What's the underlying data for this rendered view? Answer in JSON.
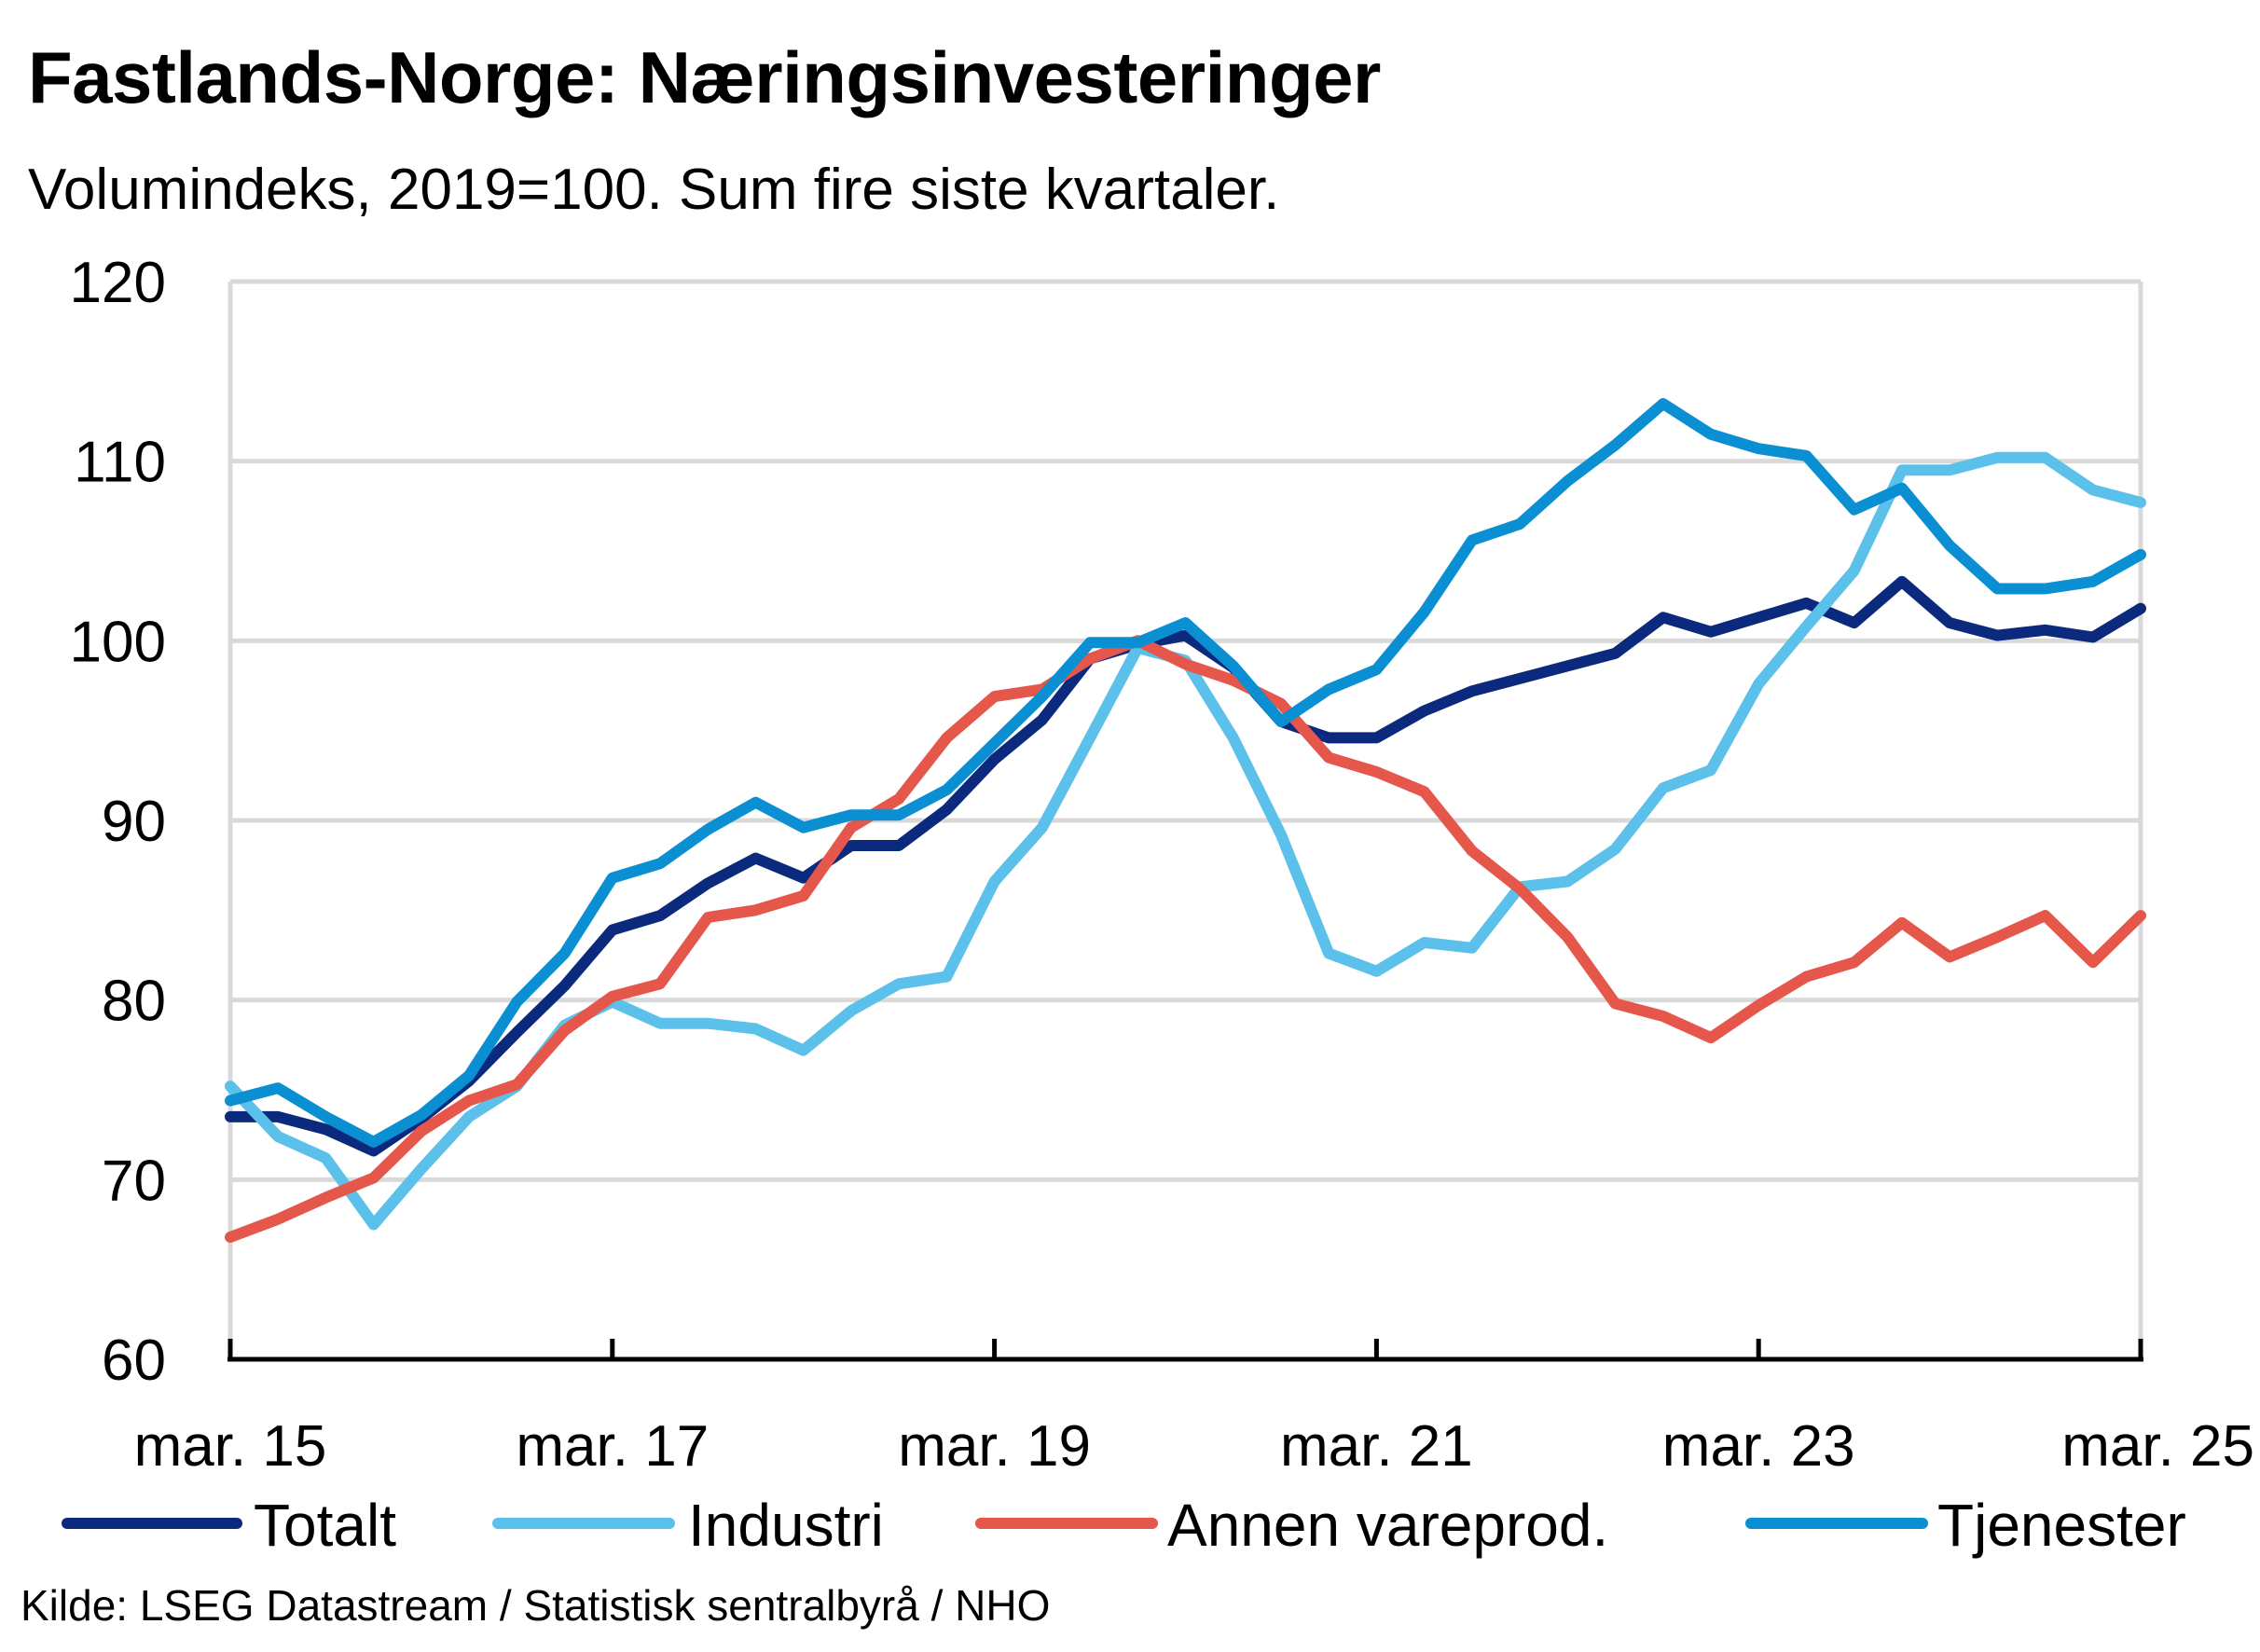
{
  "title": "Fastlands-Norge:  Næringsinvesteringer",
  "subtitle": "Volumindeks, 2019=100. Sum fire siste kvartaler.",
  "source": "Kilde: LSEG Datastream / Statistisk sentralbyrå / NHO",
  "chart_data": {
    "type": "line",
    "title": "Fastlands-Norge:  Næringsinvesteringer",
    "subtitle": "Volumindeks, 2019=100. Sum fire siste kvartaler.",
    "xlabel": "",
    "ylabel": "",
    "ylim": [
      60,
      120
    ],
    "yticks": [
      60,
      70,
      80,
      90,
      100,
      110,
      120
    ],
    "x_tick_labels": [
      "mar. 15",
      "mar. 17",
      "mar. 19",
      "mar. 21",
      "mar. 23",
      "mar. 25"
    ],
    "x_start": "mar. 15",
    "x_end": "mar. 25",
    "grid": true,
    "legend_position": "bottom",
    "series": [
      {
        "name": "Totalt",
        "color": "#0b2a7e",
        "values": [
          73.5,
          73.5,
          72.8,
          71.6,
          73.4,
          75.5,
          78.2,
          80.8,
          83.9,
          84.7,
          86.5,
          87.9,
          86.8,
          88.6,
          88.6,
          90.6,
          93.4,
          95.6,
          99.0,
          99.8,
          100.3,
          98.5,
          95.5,
          94.6,
          94.6,
          96.1,
          97.2,
          97.9,
          98.6,
          99.3,
          101.3,
          100.5,
          101.3,
          102.1,
          101.0,
          103.3,
          101.0,
          100.3,
          100.6,
          100.2,
          101.8
        ]
      },
      {
        "name": "Industri",
        "color": "#5bc0ea",
        "values": [
          75.2,
          72.4,
          71.2,
          67.5,
          70.6,
          73.5,
          75.2,
          78.6,
          79.9,
          78.7,
          78.7,
          78.4,
          77.2,
          79.4,
          80.9,
          81.3,
          86.6,
          89.6,
          94.6,
          99.6,
          98.9,
          94.6,
          89.2,
          82.6,
          81.6,
          83.2,
          82.9,
          86.3,
          86.6,
          88.4,
          91.8,
          92.8,
          97.6,
          100.8,
          103.9,
          109.5,
          109.5,
          110.2,
          110.2,
          108.4,
          107.7
        ]
      },
      {
        "name": "Annen vareprod.",
        "color": "#e5574b",
        "values": [
          66.8,
          67.8,
          69.0,
          70.1,
          72.7,
          74.4,
          75.3,
          78.3,
          80.2,
          80.9,
          84.6,
          85.0,
          85.8,
          89.6,
          91.2,
          94.6,
          96.9,
          97.3,
          99.0,
          100.0,
          98.7,
          97.8,
          96.5,
          93.5,
          92.7,
          91.6,
          88.3,
          86.2,
          83.5,
          79.8,
          79.1,
          77.9,
          79.7,
          81.3,
          82.1,
          84.3,
          82.4,
          83.5,
          84.7,
          82.1,
          84.7
        ]
      },
      {
        "name": "Tjenester",
        "color": "#0a8fd3",
        "values": [
          74.4,
          75.1,
          73.5,
          72.1,
          73.6,
          75.8,
          79.9,
          82.6,
          86.8,
          87.6,
          89.5,
          91.0,
          89.6,
          90.3,
          90.3,
          91.7,
          94.3,
          96.9,
          99.9,
          99.9,
          101.0,
          98.6,
          95.5,
          97.3,
          98.4,
          101.6,
          105.6,
          106.5,
          108.9,
          110.9,
          113.2,
          111.5,
          110.7,
          110.3,
          107.3,
          108.5,
          105.3,
          102.9,
          102.9,
          103.3,
          104.8
        ]
      }
    ]
  }
}
